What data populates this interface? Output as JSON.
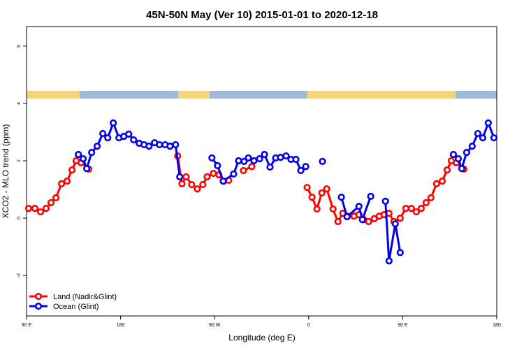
{
  "chart_data": {
    "type": "line",
    "title": "45N-50N May (Ver 10)   2015-01-01 to 2020-12-18",
    "x_label": "Longitude (deg E)",
    "y_label": "XCO2 - MLO trend (ppm)",
    "xlim": [
      90,
      540
    ],
    "ylim": [
      -3.41,
      6.68
    ],
    "xticks": [
      {
        "value": 90,
        "label": "90 E"
      },
      180,
      {
        "value": 270,
        "label": "90 W"
      },
      {
        "value": 360,
        "label": "0"
      },
      {
        "value": 450,
        "label": "90 E"
      },
      {
        "value": 540,
        "label": "180"
      }
    ],
    "yticks": [
      -2,
      0,
      2,
      4,
      6
    ],
    "legend": "bottomleft",
    "series": [
      {
        "name": "Land (Nadir&Glint)",
        "color": "#ff0000",
        "x": [
          92.0,
          98.0,
          103.4,
          108.7,
          113.4,
          118.1,
          123.5,
          128.8,
          133.5,
          137.5,
          142.2,
          149.6,
          null,
          234.6,
          238.7,
          242.7,
          248.0,
          253.4,
          258.7,
          262.8,
          268.8,
          274.1,
          278.8,
          283.5,
          null,
          297.6,
          305.6,
          null,
          358.5,
          363.2,
          367.9,
          372.6,
          377.3,
          383.3,
          388.0,
          392.7,
          397.3,
          403.4,
          408.1,
          412.8,
          417.4,
          422.8,
          427.5,
          432.2,
          436.9,
          441.6,
          447.6,
          453.0,
          458.3,
          463.0,
          467.7,
          472.4,
          477.0,
          482.4,
          487.8,
          492.5,
          496.5,
          501.2,
          508.5
        ],
        "values": [
          0.34,
          0.34,
          0.22,
          0.34,
          0.54,
          0.71,
          1.2,
          1.29,
          1.68,
          2.0,
          1.93,
          1.71,
          null,
          2.17,
          1.2,
          1.44,
          1.17,
          1.02,
          1.17,
          1.44,
          1.56,
          1.51,
          1.29,
          1.32,
          null,
          1.66,
          1.8,
          null,
          1.07,
          0.73,
          0.32,
          0.88,
          1.02,
          0.32,
          -0.12,
          0.17,
          0.07,
          0.07,
          0.12,
          -0.05,
          -0.12,
          -0.02,
          0.07,
          0.12,
          0.17,
          -0.12,
          0.0,
          0.34,
          0.34,
          0.22,
          0.34,
          0.54,
          0.71,
          1.2,
          1.29,
          1.68,
          2.0,
          1.93,
          1.71
        ]
      },
      {
        "name": "Ocean (Glint)",
        "color": "#0000ee",
        "x": [
          139.6,
          144.2,
          147.6,
          152.3,
          157.6,
          163.0,
          167.7,
          173.0,
          178.4,
          183.1,
          187.8,
          192.5,
          197.8,
          202.5,
          207.2,
          212.5,
          217.2,
          222.6,
          227.3,
          232.6,
          236.6,
          null,
          267.4,
          272.8,
          278.2,
          288.2,
          292.9,
          298.2,
          302.3,
          307.6,
          313.0,
          317.7,
          323.0,
          328.4,
          333.1,
          338.4,
          343.1,
          347.8,
          352.5,
          357.2,
          null,
          373.2,
          null,
          391.3,
          396.7,
          408.1,
          411.4,
          419.4,
          null,
          433.5,
          436.9,
          442.9,
          447.6,
          null,
          498.5,
          503.2,
          506.5,
          511.2,
          516.5,
          521.9,
          526.6,
          531.9,
          537.3
        ],
        "values": [
          2.22,
          2.07,
          1.73,
          2.29,
          2.51,
          2.95,
          2.8,
          3.32,
          2.8,
          2.85,
          2.93,
          2.73,
          2.61,
          2.56,
          2.51,
          2.63,
          2.56,
          2.56,
          2.51,
          2.56,
          1.44,
          null,
          2.1,
          1.83,
          1.29,
          1.54,
          2.0,
          1.98,
          2.1,
          2.0,
          2.07,
          2.22,
          1.78,
          2.1,
          2.12,
          2.17,
          2.05,
          2.05,
          1.66,
          1.8,
          null,
          1.98,
          null,
          0.73,
          0.05,
          0.41,
          -0.05,
          0.76,
          null,
          0.59,
          -1.49,
          -0.2,
          -1.2,
          null,
          2.22,
          2.07,
          1.73,
          2.29,
          2.51,
          2.95,
          2.8,
          3.32,
          2.8
        ]
      }
    ]
  }
}
